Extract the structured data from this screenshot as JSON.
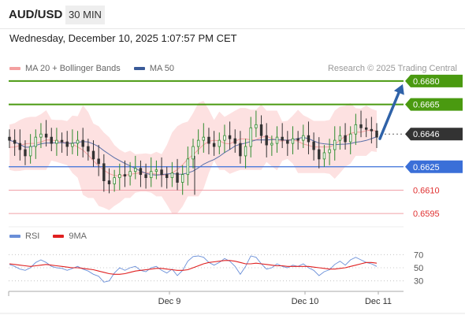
{
  "header": {
    "pair": "AUD/USD",
    "timeframe": "30 MIN",
    "datetime": "Wednesday, December 10, 2025 1:07:57 PM CET"
  },
  "legend": {
    "items": [
      {
        "label": "MA 20 + Bollinger Bands",
        "color": "#f4a0a0"
      },
      {
        "label": "MA 50",
        "color": "#3a5a98"
      }
    ],
    "credit": "Research © 2025 Trading Central"
  },
  "rsi_legend": {
    "items": [
      {
        "label": "RSI",
        "color": "#6a8fd8"
      },
      {
        "label": "9MA",
        "color": "#e02020"
      }
    ]
  },
  "colors": {
    "resistance": "#4a9a10",
    "pivot": "#3a6fd8",
    "support": "#f0a0a8",
    "current": "#333333",
    "candle_up": "#2e8b2e",
    "candle_down": "#333333",
    "arrow": "#2f62a8",
    "band_fill": "#fde1e1",
    "ma50": "#5a6fa8"
  },
  "chart_data": [
    {
      "type": "candlestick",
      "title": "AUD/USD",
      "timeframe": "30 MIN",
      "ylim": [
        0.6588,
        0.6684
      ],
      "x_ticks": [
        "Dec 9",
        "Dec 10",
        "Dec 11"
      ],
      "levels": [
        {
          "value": 0.668,
          "label": "0.6680",
          "kind": "resistance"
        },
        {
          "value": 0.6665,
          "label": "0.6665",
          "kind": "resistance"
        },
        {
          "value": 0.6646,
          "label": "0.6646",
          "kind": "current"
        },
        {
          "value": 0.6625,
          "label": "0.6625",
          "kind": "pivot"
        },
        {
          "value": 0.661,
          "label": "0.6610",
          "kind": "support"
        },
        {
          "value": 0.6595,
          "label": "0.6595",
          "kind": "support"
        }
      ],
      "arrow": {
        "direction": "up",
        "from": 0.6643,
        "to": 0.6678
      },
      "indicators": [
        "MA 20 + Bollinger Bands",
        "MA 50"
      ],
      "price_path": [
        0.6642,
        0.664,
        0.6636,
        0.6632,
        0.6638,
        0.6644,
        0.6646,
        0.6644,
        0.664,
        0.6642,
        0.6641,
        0.6638,
        0.664,
        0.6642,
        0.6638,
        0.6635,
        0.663,
        0.6627,
        0.6616,
        0.6614,
        0.6618,
        0.662,
        0.6619,
        0.6622,
        0.6624,
        0.662,
        0.6618,
        0.6622,
        0.6623,
        0.662,
        0.6618,
        0.6621,
        0.6615,
        0.662,
        0.663,
        0.6638,
        0.6642,
        0.6644,
        0.664,
        0.6638,
        0.6642,
        0.6645,
        0.6643,
        0.664,
        0.6632,
        0.6638,
        0.665,
        0.6652,
        0.6645,
        0.6639,
        0.664,
        0.6644,
        0.6642,
        0.664,
        0.6643,
        0.6642,
        0.6645,
        0.6641,
        0.6636,
        0.663,
        0.6634,
        0.6636,
        0.6642,
        0.6645,
        0.6641,
        0.6646,
        0.6652,
        0.665,
        0.6649,
        0.6648,
        0.6644
      ]
    },
    {
      "type": "line",
      "title": "RSI",
      "ylim": [
        20,
        80
      ],
      "y_ticks": [
        70,
        50,
        30
      ],
      "series": [
        {
          "name": "RSI",
          "color": "#6a8fd8",
          "values": [
            55,
            52,
            48,
            46,
            50,
            58,
            62,
            58,
            52,
            50,
            49,
            46,
            49,
            52,
            48,
            45,
            40,
            37,
            28,
            30,
            42,
            50,
            46,
            50,
            52,
            46,
            44,
            50,
            52,
            46,
            42,
            48,
            38,
            46,
            60,
            67,
            68,
            66,
            58,
            54,
            58,
            64,
            60,
            52,
            40,
            52,
            68,
            66,
            56,
            48,
            50,
            56,
            52,
            50,
            54,
            52,
            56,
            50,
            46,
            38,
            44,
            47,
            55,
            60,
            54,
            62,
            66,
            62,
            58,
            56,
            52
          ]
        },
        {
          "name": "9MA",
          "color": "#e02020",
          "values": [
            56,
            55,
            54,
            53,
            52,
            53,
            54,
            55,
            54,
            53,
            52,
            51,
            50,
            50,
            49,
            48,
            47,
            45,
            43,
            41,
            40,
            40,
            41,
            43,
            45,
            46,
            47,
            48,
            49,
            49,
            48,
            47,
            46,
            46,
            47,
            50,
            53,
            56,
            58,
            59,
            60,
            61,
            61,
            60,
            58,
            56,
            56,
            57,
            56,
            55,
            54,
            53,
            53,
            52,
            52,
            52,
            52,
            52,
            51,
            50,
            49,
            48,
            48,
            49,
            50,
            52,
            54,
            56,
            58,
            58,
            57
          ]
        }
      ]
    }
  ]
}
